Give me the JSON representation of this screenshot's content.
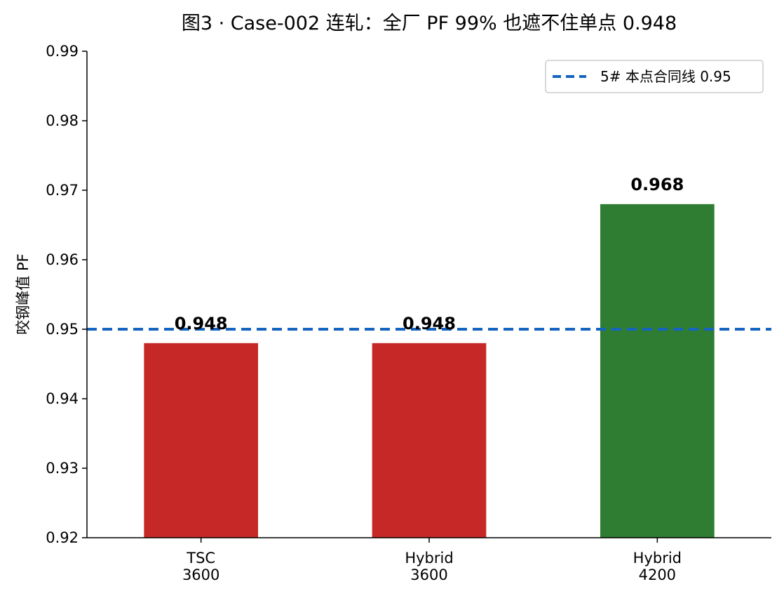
{
  "chart_data": {
    "type": "bar",
    "title": "图3 · Case-002 连轧：全厂 PF 99% 也遮不住单点 0.948",
    "xlabel": "",
    "ylabel": "咬钢峰值 PF",
    "categories": [
      [
        "TSC",
        "3600"
      ],
      [
        "Hybrid",
        "3600"
      ],
      [
        "Hybrid",
        "4200"
      ]
    ],
    "values": [
      0.948,
      0.948,
      0.968
    ],
    "data_labels": [
      "0.948",
      "0.948",
      "0.968"
    ],
    "bar_colors": [
      "#c62828",
      "#c62828",
      "#2e7d32"
    ],
    "ylim": [
      0.92,
      0.99
    ],
    "yticks": [
      0.92,
      0.93,
      0.94,
      0.95,
      0.96,
      0.97,
      0.98,
      0.99
    ],
    "ytick_labels": [
      "0.92",
      "0.93",
      "0.94",
      "0.95",
      "0.96",
      "0.97",
      "0.98",
      "0.99"
    ],
    "reference_line": {
      "value": 0.95,
      "label": "5# 本点合同线 0.95",
      "color": "#1565c0",
      "style": "dashed"
    },
    "legend_position": "top-right",
    "grid": false
  }
}
